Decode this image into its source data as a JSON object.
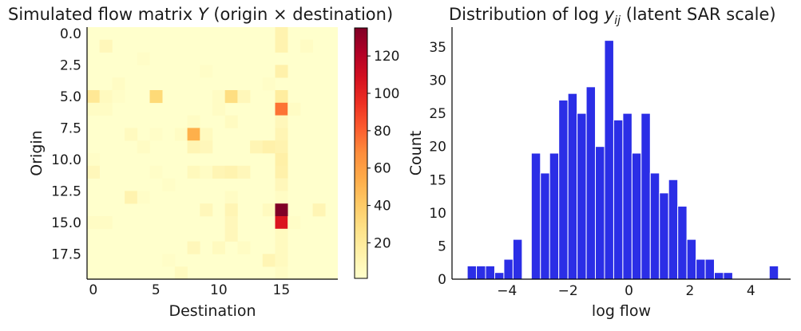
{
  "chart_data": [
    {
      "type": "heatmap",
      "title": "Simulated flow matrix Y (origin × destination)",
      "title_parts": {
        "before": "Simulated flow matrix ",
        "italic": "Y",
        "after": " (origin × destination)"
      },
      "xlabel": "Destination",
      "ylabel": "Origin",
      "xticks": [
        "0",
        "5",
        "10",
        "15"
      ],
      "xtick_values": [
        0,
        5,
        10,
        15
      ],
      "yticks": [
        "0.0",
        "2.5",
        "5.0",
        "7.5",
        "10.0",
        "12.5",
        "15.0",
        "17.5"
      ],
      "ytick_values": [
        0,
        2.5,
        5,
        7.5,
        10,
        12.5,
        15,
        17.5
      ],
      "xlim": [
        -0.5,
        19.5
      ],
      "ylim": [
        19.5,
        -0.5
      ],
      "n_rows": 20,
      "n_cols": 20,
      "colormap": "YlOrRd",
      "colorbar": {
        "ticks": [
          "20",
          "40",
          "60",
          "80",
          "100",
          "120"
        ],
        "tick_values": [
          20,
          40,
          60,
          80,
          100,
          120
        ],
        "range": [
          1,
          135
        ]
      },
      "cells": [
        [
          0,
          15,
          12
        ],
        [
          1,
          1,
          8
        ],
        [
          1,
          15,
          12
        ],
        [
          1,
          17,
          4
        ],
        [
          2,
          4,
          3
        ],
        [
          3,
          15,
          14
        ],
        [
          3,
          9,
          3
        ],
        [
          4,
          2,
          4
        ],
        [
          4,
          14,
          3
        ],
        [
          5,
          0,
          22
        ],
        [
          5,
          1,
          6
        ],
        [
          5,
          2,
          3
        ],
        [
          5,
          5,
          34
        ],
        [
          5,
          10,
          4
        ],
        [
          5,
          11,
          30
        ],
        [
          5,
          12,
          8
        ],
        [
          5,
          15,
          18
        ],
        [
          6,
          0,
          4
        ],
        [
          6,
          1,
          4
        ],
        [
          6,
          10,
          4
        ],
        [
          6,
          15,
          75
        ],
        [
          6,
          16,
          4
        ],
        [
          7,
          8,
          4
        ],
        [
          7,
          11,
          5
        ],
        [
          7,
          15,
          8
        ],
        [
          8,
          3,
          6
        ],
        [
          8,
          5,
          3
        ],
        [
          8,
          7,
          4
        ],
        [
          8,
          8,
          52
        ],
        [
          8,
          9,
          6
        ],
        [
          8,
          15,
          10
        ],
        [
          9,
          4,
          4
        ],
        [
          9,
          8,
          10
        ],
        [
          9,
          9,
          8
        ],
        [
          9,
          13,
          10
        ],
        [
          9,
          14,
          14
        ],
        [
          9,
          15,
          12
        ],
        [
          10,
          0,
          3
        ],
        [
          10,
          15,
          15
        ],
        [
          11,
          0,
          8
        ],
        [
          11,
          5,
          3
        ],
        [
          11,
          8,
          7
        ],
        [
          11,
          9,
          4
        ],
        [
          11,
          10,
          10
        ],
        [
          11,
          11,
          12
        ],
        [
          11,
          12,
          8
        ],
        [
          11,
          15,
          14
        ],
        [
          12,
          6,
          3
        ],
        [
          12,
          15,
          8
        ],
        [
          13,
          3,
          12
        ],
        [
          13,
          4,
          3
        ],
        [
          13,
          11,
          4
        ],
        [
          13,
          15,
          4
        ],
        [
          14,
          9,
          8
        ],
        [
          14,
          11,
          10
        ],
        [
          14,
          14,
          6
        ],
        [
          14,
          15,
          135
        ],
        [
          14,
          18,
          10
        ],
        [
          15,
          0,
          4
        ],
        [
          15,
          1,
          4
        ],
        [
          15,
          11,
          8
        ],
        [
          15,
          15,
          105
        ],
        [
          15,
          16,
          3
        ],
        [
          16,
          11,
          8
        ],
        [
          16,
          15,
          6
        ],
        [
          17,
          8,
          8
        ],
        [
          17,
          10,
          6
        ],
        [
          17,
          12,
          4
        ],
        [
          17,
          15,
          6
        ],
        [
          18,
          6,
          3
        ],
        [
          18,
          14,
          10
        ],
        [
          18,
          15,
          6
        ],
        [
          19,
          7,
          6
        ],
        [
          19,
          15,
          4
        ]
      ]
    },
    {
      "type": "bar",
      "subtype": "histogram",
      "title": "Distribution of log yij (latent SAR scale)",
      "title_parts": {
        "before": "Distribution of log ",
        "italic": "y",
        "sub": "ij",
        "after": " (latent SAR scale)"
      },
      "xlabel": "log flow",
      "ylabel": "Count",
      "xticks": [
        "−4",
        "−2",
        "0",
        "2",
        "4"
      ],
      "xtick_values": [
        -4,
        -2,
        0,
        2,
        4
      ],
      "yticks": [
        "0",
        "5",
        "10",
        "15",
        "20",
        "25",
        "30",
        "35"
      ],
      "ytick_values": [
        0,
        5,
        10,
        15,
        20,
        25,
        30,
        35
      ],
      "xlim": [
        -5.8,
        5.3
      ],
      "ylim": [
        0,
        38
      ],
      "bar_color": "#2b2ee6",
      "bins": [
        [
          -5.3,
          -5.0,
          2
        ],
        [
          -5.0,
          -4.7,
          2
        ],
        [
          -4.7,
          -4.4,
          2
        ],
        [
          -4.4,
          -4.1,
          1
        ],
        [
          -4.1,
          -3.8,
          3
        ],
        [
          -3.8,
          -3.5,
          6
        ],
        [
          -3.5,
          -3.2,
          0
        ],
        [
          -3.2,
          -2.9,
          19
        ],
        [
          -2.9,
          -2.6,
          16
        ],
        [
          -2.6,
          -2.3,
          19
        ],
        [
          -2.3,
          -2.0,
          27
        ],
        [
          -2.0,
          -1.7,
          28
        ],
        [
          -1.7,
          -1.4,
          25
        ],
        [
          -1.4,
          -1.1,
          29
        ],
        [
          -1.1,
          -0.8,
          20
        ],
        [
          -0.8,
          -0.5,
          36
        ],
        [
          -0.5,
          -0.2,
          24
        ],
        [
          -0.2,
          0.1,
          25
        ],
        [
          0.1,
          0.4,
          19
        ],
        [
          0.4,
          0.7,
          25
        ],
        [
          0.7,
          1.0,
          16
        ],
        [
          1.0,
          1.3,
          13
        ],
        [
          1.3,
          1.6,
          15
        ],
        [
          1.6,
          1.9,
          11
        ],
        [
          1.9,
          2.2,
          6
        ],
        [
          2.2,
          2.5,
          3
        ],
        [
          2.5,
          2.8,
          3
        ],
        [
          2.8,
          3.1,
          1
        ],
        [
          3.1,
          3.4,
          1
        ],
        [
          3.4,
          3.7,
          0
        ],
        [
          3.7,
          4.0,
          0
        ],
        [
          4.0,
          4.3,
          0
        ],
        [
          4.3,
          4.6,
          0
        ],
        [
          4.6,
          4.9,
          2
        ]
      ]
    }
  ]
}
